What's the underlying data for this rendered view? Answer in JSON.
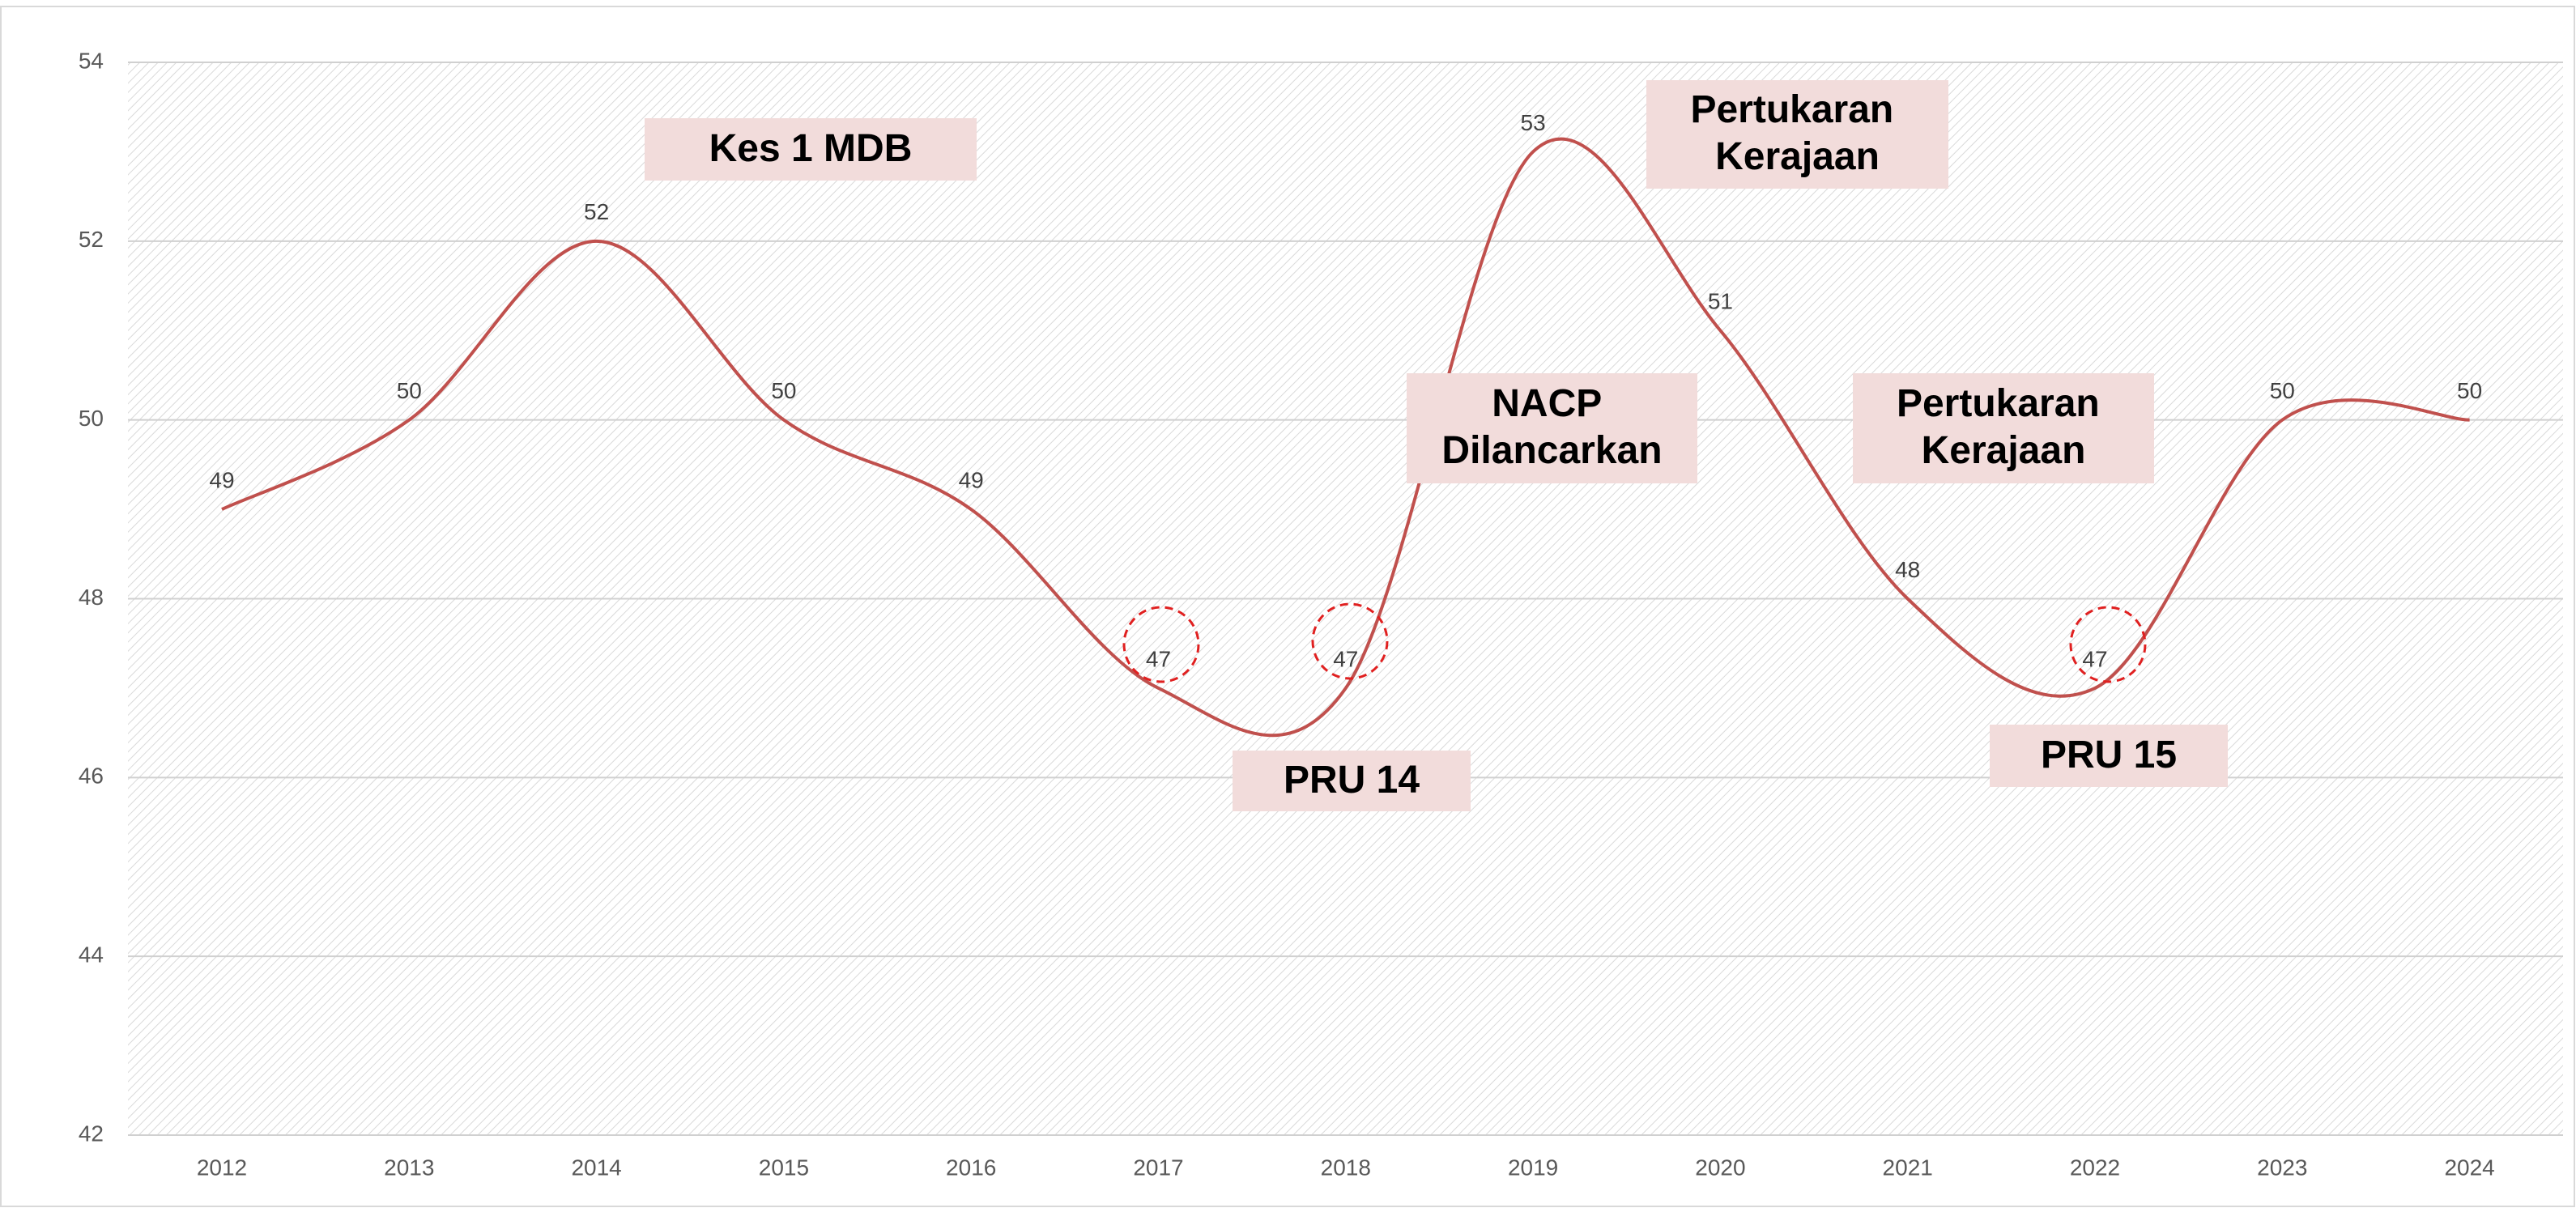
{
  "chart_data": {
    "type": "line",
    "categories": [
      "2012",
      "2013",
      "2014",
      "2015",
      "2016",
      "2017",
      "2018",
      "2019",
      "2020",
      "2021",
      "2022",
      "2023",
      "2024"
    ],
    "series": [
      {
        "color": "#c0504d",
        "values": [
          49,
          50,
          52,
          50,
          49,
          47,
          47,
          53,
          51,
          48,
          47,
          50,
          50
        ]
      }
    ],
    "ylim": [
      42,
      54
    ],
    "yticks": [
      42,
      44,
      46,
      48,
      50,
      52,
      54
    ],
    "grid": true,
    "smooth": true,
    "annotations": [
      "Kes 1 MDB",
      "PRU 14",
      "NACP Dilancarkan",
      "Pertukaran Kerajaan",
      "Pertukaran Kerajaan",
      "PRU 15"
    ]
  }
}
